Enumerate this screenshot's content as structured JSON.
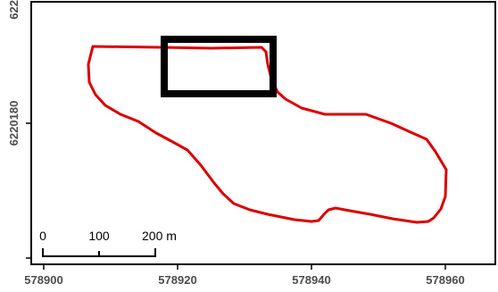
{
  "map": {
    "x_ticks": [
      "578900",
      "578920",
      "578940",
      "578960"
    ],
    "y_ticks": [
      "6220180",
      "622"
    ],
    "boundary_color": "#dd0000",
    "highlight_color": "#000000",
    "frame_color": "#000000",
    "tick_label_color": "#4d4d4d"
  },
  "scalebar": {
    "labels": [
      "0",
      "100",
      "200 m"
    ]
  }
}
